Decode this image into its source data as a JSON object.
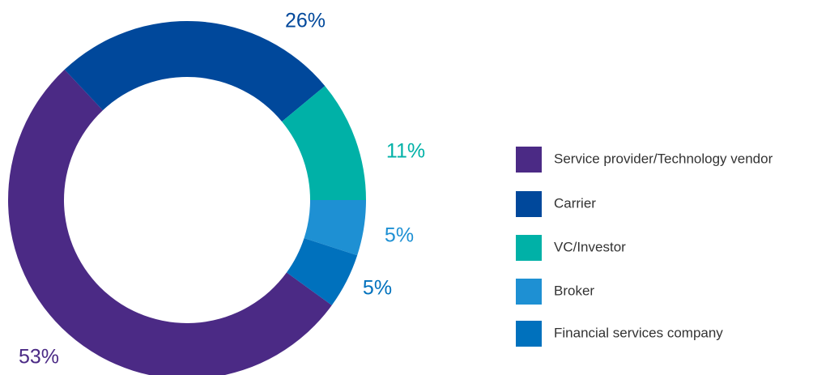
{
  "chart_data": {
    "type": "donut",
    "categories": [
      "Service provider/Technology vendor",
      "Carrier",
      "VC/Investor",
      "Broker",
      "Financial services company"
    ],
    "values": [
      53,
      26,
      11,
      5,
      5
    ],
    "value_labels": [
      "53%",
      "26%",
      "11%",
      "5%",
      "5%"
    ],
    "colors": [
      "#4b2a85",
      "#00489b",
      "#00b1a7",
      "#1e90d3",
      "#0071bd"
    ],
    "legend": "right"
  }
}
